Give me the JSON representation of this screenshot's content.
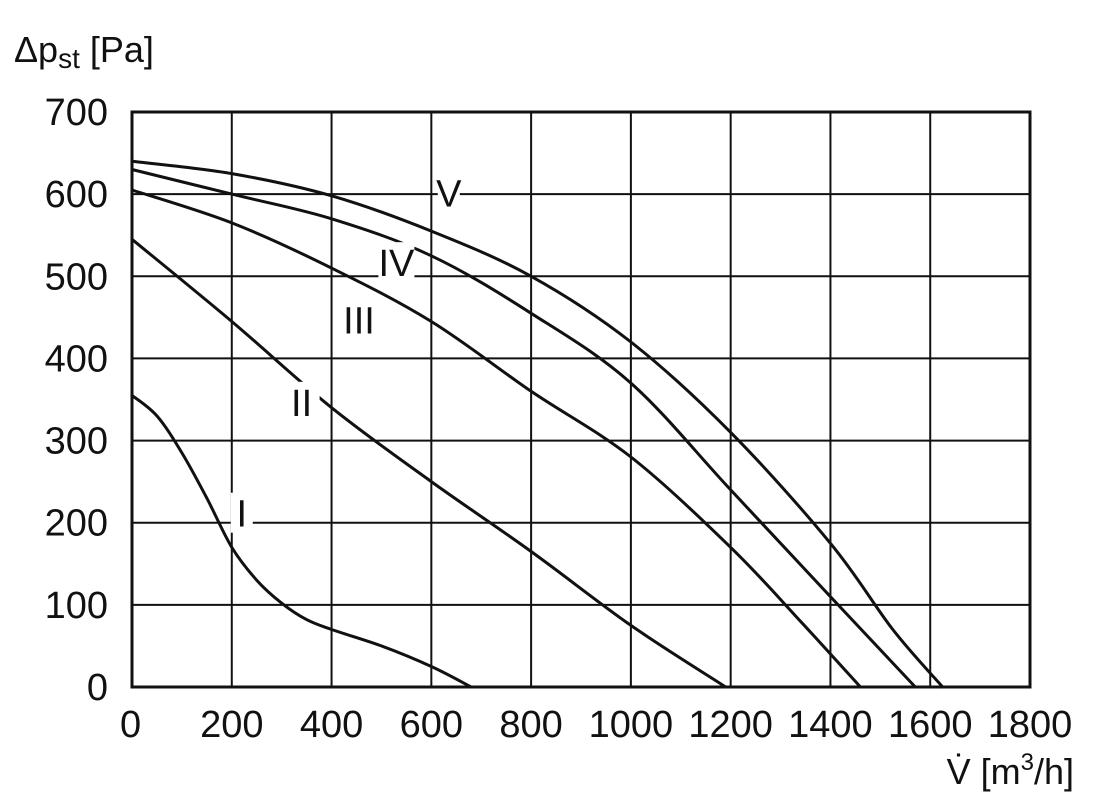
{
  "chart_data": {
    "type": "line",
    "ylabel": {
      "symbol": "Δp",
      "subscript": "st",
      "unit": " [Pa]"
    },
    "xlabel": {
      "symbol": "V̇",
      "unit_prefix": " [m",
      "unit_sup": "3",
      "unit_suffix": "/h]"
    },
    "xlim": [
      0,
      1800
    ],
    "ylim": [
      0,
      700
    ],
    "x_ticks": [
      "0",
      "200",
      "400",
      "600",
      "800",
      "1000",
      "1200",
      "1400",
      "1600",
      "1800"
    ],
    "y_ticks": [
      "0",
      "100",
      "200",
      "300",
      "400",
      "500",
      "600",
      "700"
    ],
    "grid": true,
    "series": [
      {
        "name": "I",
        "label_at": [
          220,
          200
        ],
        "points": [
          [
            0,
            355
          ],
          [
            50,
            330
          ],
          [
            100,
            285
          ],
          [
            150,
            230
          ],
          [
            200,
            170
          ],
          [
            250,
            130
          ],
          [
            300,
            102
          ],
          [
            350,
            82
          ],
          [
            400,
            70
          ],
          [
            500,
            50
          ],
          [
            600,
            25
          ],
          [
            680,
            0
          ]
        ]
      },
      {
        "name": "II",
        "label_at": [
          340,
          335
        ],
        "points": [
          [
            0,
            545
          ],
          [
            200,
            445
          ],
          [
            400,
            340
          ],
          [
            600,
            250
          ],
          [
            800,
            165
          ],
          [
            1000,
            75
          ],
          [
            1190,
            0
          ]
        ]
      },
      {
        "name": "III",
        "label_at": [
          455,
          435
        ],
        "points": [
          [
            0,
            605
          ],
          [
            200,
            565
          ],
          [
            400,
            510
          ],
          [
            600,
            445
          ],
          [
            800,
            360
          ],
          [
            1000,
            280
          ],
          [
            1200,
            170
          ],
          [
            1340,
            80
          ],
          [
            1460,
            0
          ]
        ]
      },
      {
        "name": "IV",
        "label_at": [
          530,
          505
        ],
        "points": [
          [
            0,
            630
          ],
          [
            200,
            600
          ],
          [
            400,
            570
          ],
          [
            600,
            525
          ],
          [
            800,
            455
          ],
          [
            1000,
            370
          ],
          [
            1200,
            240
          ],
          [
            1400,
            110
          ],
          [
            1570,
            0
          ]
        ]
      },
      {
        "name": "V",
        "label_at": [
          635,
          590
        ],
        "points": [
          [
            0,
            640
          ],
          [
            200,
            625
          ],
          [
            400,
            598
          ],
          [
            600,
            555
          ],
          [
            800,
            500
          ],
          [
            1000,
            420
          ],
          [
            1200,
            310
          ],
          [
            1400,
            175
          ],
          [
            1525,
            70
          ],
          [
            1625,
            0
          ]
        ]
      }
    ]
  }
}
